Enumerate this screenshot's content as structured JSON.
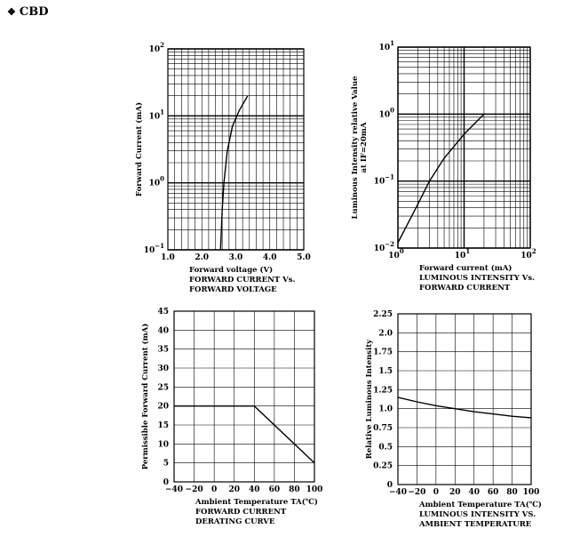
{
  "header": {
    "bullet": "❖",
    "title": "CBD"
  },
  "chart_data": [
    {
      "id": "iv",
      "type": "line",
      "xlabel": "Forward voltage (V)",
      "ylabel": "Forward Current (mA)",
      "caption": [
        "FORWARD CURRENT Vs.",
        "FORWARD VOLTAGE"
      ],
      "xlim": [
        1.0,
        5.0
      ],
      "ylim": [
        0.1,
        100
      ],
      "yscale": "log",
      "x_ticks": [
        "1.0",
        "2.0",
        "3.0",
        "4.0",
        "5.0"
      ],
      "y_ticks": [
        {
          "base": "10",
          "exp": "2"
        },
        {
          "base": "10",
          "exp": "1"
        },
        {
          "base": "10",
          "exp": "0"
        },
        {
          "base": "10",
          "exp": "−1"
        }
      ],
      "grid": true,
      "points": [
        [
          2.55,
          0.1
        ],
        [
          2.6,
          0.4
        ],
        [
          2.65,
          1.0
        ],
        [
          2.75,
          3.0
        ],
        [
          2.9,
          7.0
        ],
        [
          3.1,
          12.0
        ],
        [
          3.35,
          20.0
        ]
      ]
    },
    {
      "id": "lum_if",
      "type": "line",
      "xlabel": "Forward current (mA)",
      "ylabel": [
        "Luminous Intensity relative Value",
        "at IF=20mA"
      ],
      "caption": [
        "LUMINOUS INTENSITY Vs.",
        "FORWARD CURRENT"
      ],
      "xlim": [
        1,
        100
      ],
      "ylim": [
        0.01,
        10
      ],
      "xscale": "log",
      "yscale": "log",
      "x_ticks": [
        {
          "base": "10",
          "exp": "0"
        },
        {
          "base": "10",
          "exp": "1"
        },
        {
          "base": "10",
          "exp": "2"
        }
      ],
      "y_ticks": [
        {
          "base": "10",
          "exp": "1"
        },
        {
          "base": "10",
          "exp": "0"
        },
        {
          "base": "10",
          "exp": "−1"
        },
        {
          "base": "10",
          "exp": "−2"
        }
      ],
      "grid": true,
      "points": [
        [
          1,
          0.012
        ],
        [
          2,
          0.045
        ],
        [
          3,
          0.1
        ],
        [
          5,
          0.22
        ],
        [
          10,
          0.5
        ],
        [
          20,
          1.0
        ]
      ]
    },
    {
      "id": "derating",
      "type": "line",
      "xlabel": "Ambient Temperature TA(℃)",
      "ylabel": "Permissible Forward Current (mA)",
      "caption": [
        "FORWARD CURRENT",
        "DERATING CURVE"
      ],
      "xlim": [
        -40,
        100
      ],
      "ylim": [
        0,
        45
      ],
      "x_ticks": [
        "−40",
        "−20",
        "0",
        "20",
        "40",
        "60",
        "80",
        "100"
      ],
      "y_ticks": [
        "45",
        "40",
        "35",
        "30",
        "25",
        "20",
        "15",
        "10",
        "5",
        "0"
      ],
      "grid": true,
      "points": [
        [
          -40,
          20
        ],
        [
          40,
          20
        ],
        [
          100,
          5
        ]
      ]
    },
    {
      "id": "lum_temp",
      "type": "line",
      "xlabel": "Ambient Temperature TA(℃)",
      "ylabel": "Relative Luminous Intensity",
      "caption": [
        "LUMINOUS INTENSITY VS.",
        "AMBIENT TEMPERATURE"
      ],
      "xlim": [
        -40,
        100
      ],
      "ylim": [
        0,
        2.25
      ],
      "x_ticks": [
        "−40",
        "−20",
        "0",
        "20",
        "40",
        "60",
        "80",
        "100"
      ],
      "y_ticks": [
        "2.25",
        "2.0",
        "1.75",
        "1.5",
        "1.25",
        "1.0",
        "0.75",
        "0.5",
        "0.25",
        "0"
      ],
      "grid": true,
      "points": [
        [
          -40,
          1.15
        ],
        [
          -20,
          1.09
        ],
        [
          0,
          1.04
        ],
        [
          20,
          1.0
        ],
        [
          40,
          0.96
        ],
        [
          60,
          0.93
        ],
        [
          80,
          0.9
        ],
        [
          100,
          0.88
        ]
      ]
    }
  ]
}
